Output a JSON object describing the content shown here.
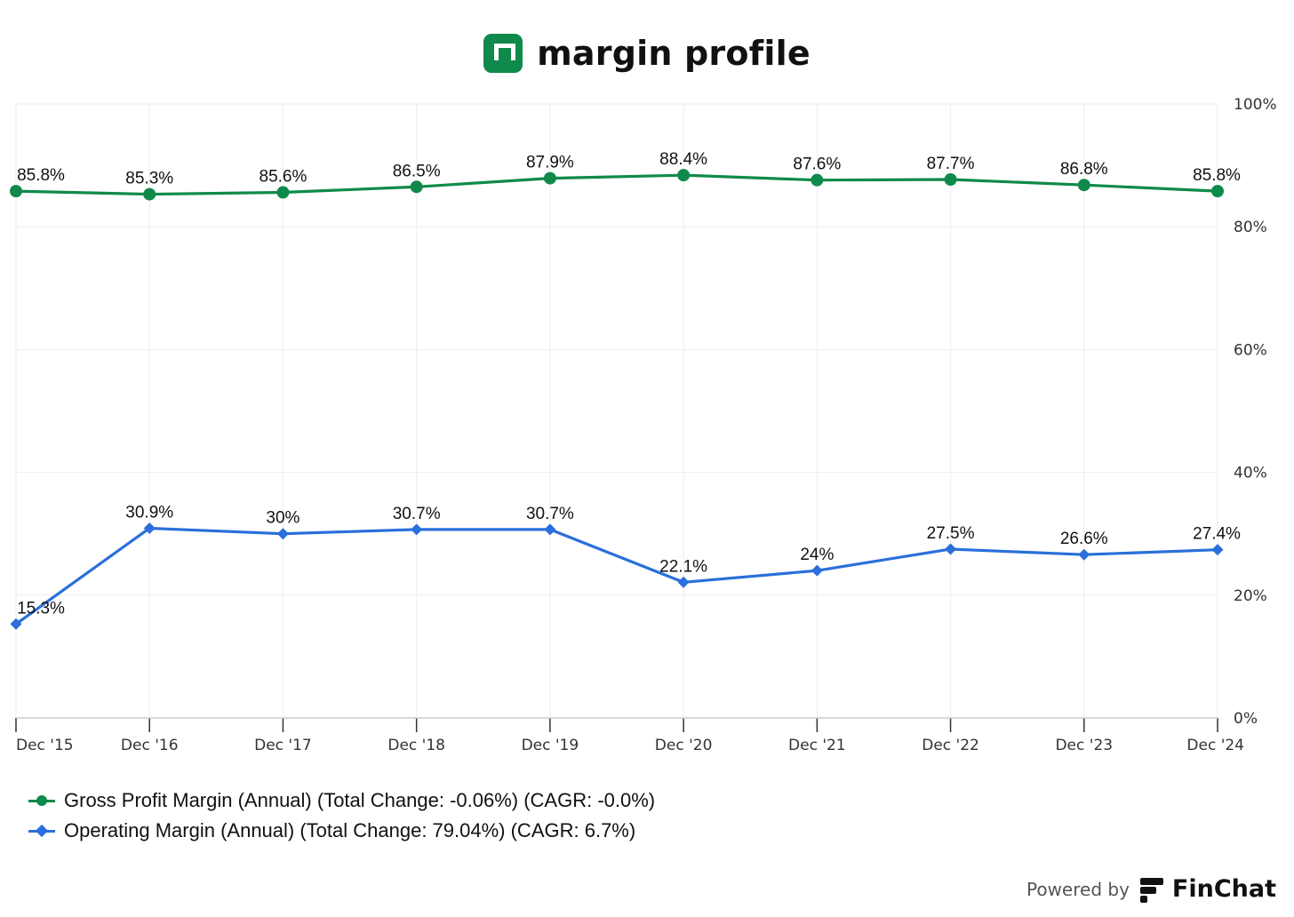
{
  "header": {
    "title": "margin profile",
    "logo_icon": "margin-profile-logo-icon"
  },
  "colors": {
    "gross": "#0f8a4a",
    "operating": "#2a6fdb",
    "grid": "#eeeeee",
    "axis": "#cccccc"
  },
  "chart_data": {
    "type": "line",
    "categories": [
      "Dec '15",
      "Dec '16",
      "Dec '17",
      "Dec '18",
      "Dec '19",
      "Dec '20",
      "Dec '21",
      "Dec '22",
      "Dec '23",
      "Dec '24"
    ],
    "ylim": [
      0,
      100
    ],
    "yticks": [
      0,
      20,
      40,
      60,
      80,
      100
    ],
    "ytick_labels": [
      "0%",
      "20%",
      "40%",
      "60%",
      "80%",
      "100%"
    ],
    "y_axis_side": "right",
    "grid": true,
    "legend_position": "bottom-left",
    "series": [
      {
        "name": "Gross Profit Margin (Annual) (Total Change: -0.06%) (CAGR: -0.0%)",
        "marker": "circle",
        "color": "#0f8a4a",
        "values": [
          85.8,
          85.3,
          85.6,
          86.5,
          87.9,
          88.4,
          87.6,
          87.7,
          86.8,
          85.8
        ],
        "labels": [
          "85.8%",
          "85.3%",
          "85.6%",
          "86.5%",
          "87.9%",
          "88.4%",
          "87.6%",
          "87.7%",
          "86.8%",
          "85.8%"
        ]
      },
      {
        "name": "Operating Margin (Annual) (Total Change: 79.04%) (CAGR: 6.7%)",
        "marker": "diamond",
        "color": "#2a6fdb",
        "values": [
          15.3,
          30.9,
          30.0,
          30.7,
          30.7,
          22.1,
          24.0,
          27.5,
          26.6,
          27.4
        ],
        "labels": [
          "15.3%",
          "30.9%",
          "30%",
          "30.7%",
          "30.7%",
          "22.1%",
          "24%",
          "27.5%",
          "26.6%",
          "27.4%"
        ]
      }
    ]
  },
  "footer": {
    "powered_by": "Powered by",
    "brand": "FinChat",
    "brand_icon": "finchat-logo-icon"
  }
}
